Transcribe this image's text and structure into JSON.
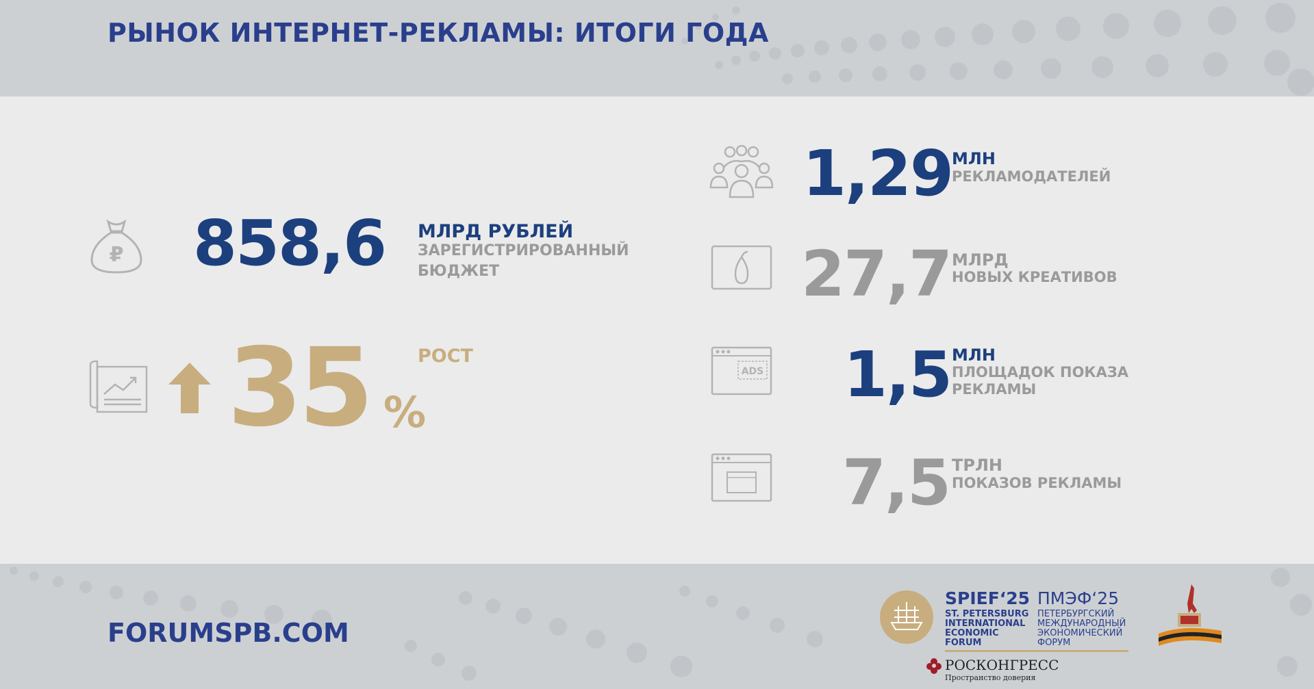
{
  "header": {
    "title": "РЫНОК ИНТЕРНЕТ-РЕКЛАМЫ: ИТОГИ ГОДА"
  },
  "budget": {
    "icon": "money-bag-ruble-icon",
    "value": "858,6",
    "unit": "МЛРД РУБЛЕЙ",
    "desc_line1": "ЗАРЕГИСТРИРОВАННЫЙ",
    "desc_line2": "БЮДЖЕТ"
  },
  "growth": {
    "icon": "chart-document-icon",
    "arrow_icon": "up-arrow-icon",
    "value": "35",
    "percent": "%",
    "label": "РОСТ"
  },
  "stats": [
    {
      "icon": "people-group-icon",
      "value": "1,29",
      "unit": "МЛН",
      "desc_line1": "РЕКЛАМОДАТЕЛЕЙ",
      "desc_line2": ""
    },
    {
      "icon": "creative-pear-icon",
      "value": "27,7",
      "unit": "МЛРД",
      "desc_line1": "НОВЫХ КРЕАТИВОВ",
      "desc_line2": ""
    },
    {
      "icon": "ads-window-icon",
      "value": "1,5",
      "unit": "МЛН",
      "desc_line1": "ПЛОЩАДОК ПОКАЗА",
      "desc_line2": "РЕКЛАМЫ"
    },
    {
      "icon": "browser-window-icon",
      "value": "7,5",
      "unit": "ТРЛН",
      "desc_line1": "ПОКАЗОВ РЕКЛАМЫ",
      "desc_line2": ""
    }
  ],
  "ads_icon_label": "ADS",
  "footer": {
    "url": "FORUMSPB.COM",
    "spief_title": "SPIEF‘25",
    "spief_lines": [
      "ST. PETERSBURG",
      "INTERNATIONAL",
      "ECONOMIC",
      "FORUM"
    ],
    "pmef_title": "ПМЭФ‘25",
    "pmef_lines": [
      "ПЕТЕРБУРГСКИЙ",
      "МЕЖДУНАРОДНЫЙ",
      "ЭКОНОМИЧЕСКИЙ",
      "ФОРУМ"
    ],
    "roscongress": "РОСКОНГРЕСС",
    "roscongress_sub": "Пространство доверия",
    "victory_logo": "victory-80-logo"
  },
  "colors": {
    "blue": "#1c3f7e",
    "grey": "#9a9a9a",
    "gold": "#c8ad7f",
    "title_blue": "#2a3f8c"
  }
}
